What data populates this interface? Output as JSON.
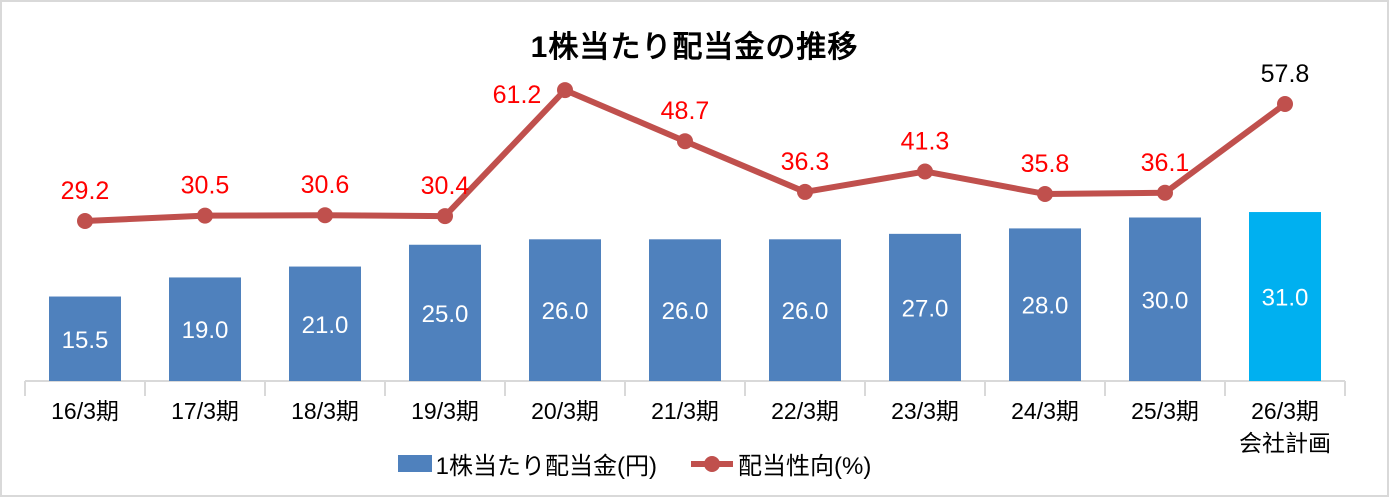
{
  "title": "1株当たり配当金の推移",
  "legend": {
    "bar_label": "1株当たり配当金(円)",
    "line_label": "配当性向(%)"
  },
  "colors": {
    "bar": "#4F81BD",
    "bar_plan": "#00B0F0",
    "line": "#C0504D",
    "point_label": "#FF0000",
    "point_label_plan": "#000000",
    "bar_value_label": "#FFFFFF",
    "axis": "#D9D9D9",
    "text": "#000000",
    "frame_border": "#D9D9D9"
  },
  "chart_data": {
    "type": "combo",
    "title": "1株当たり配当金の推移",
    "categories": [
      "16/3期",
      "17/3期",
      "18/3期",
      "19/3期",
      "20/3期",
      "21/3期",
      "22/3期",
      "23/3期",
      "24/3期",
      "25/3期",
      "26/3期\n会社計画"
    ],
    "series": [
      {
        "name": "1株当たり配当金(円)",
        "type": "bar",
        "values": [
          15.5,
          19.0,
          21.0,
          25.0,
          26.0,
          26.0,
          26.0,
          27.0,
          28.0,
          30.0,
          31.0
        ]
      },
      {
        "name": "配当性向(%)",
        "type": "line",
        "values": [
          29.2,
          30.5,
          30.6,
          30.4,
          61.2,
          48.7,
          36.3,
          41.3,
          35.8,
          36.1,
          57.8
        ]
      }
    ],
    "highlight_last_category": true,
    "last_category_is_plan": true,
    "legend_position": "bottom",
    "grid": false,
    "y_axes_visible": false
  }
}
